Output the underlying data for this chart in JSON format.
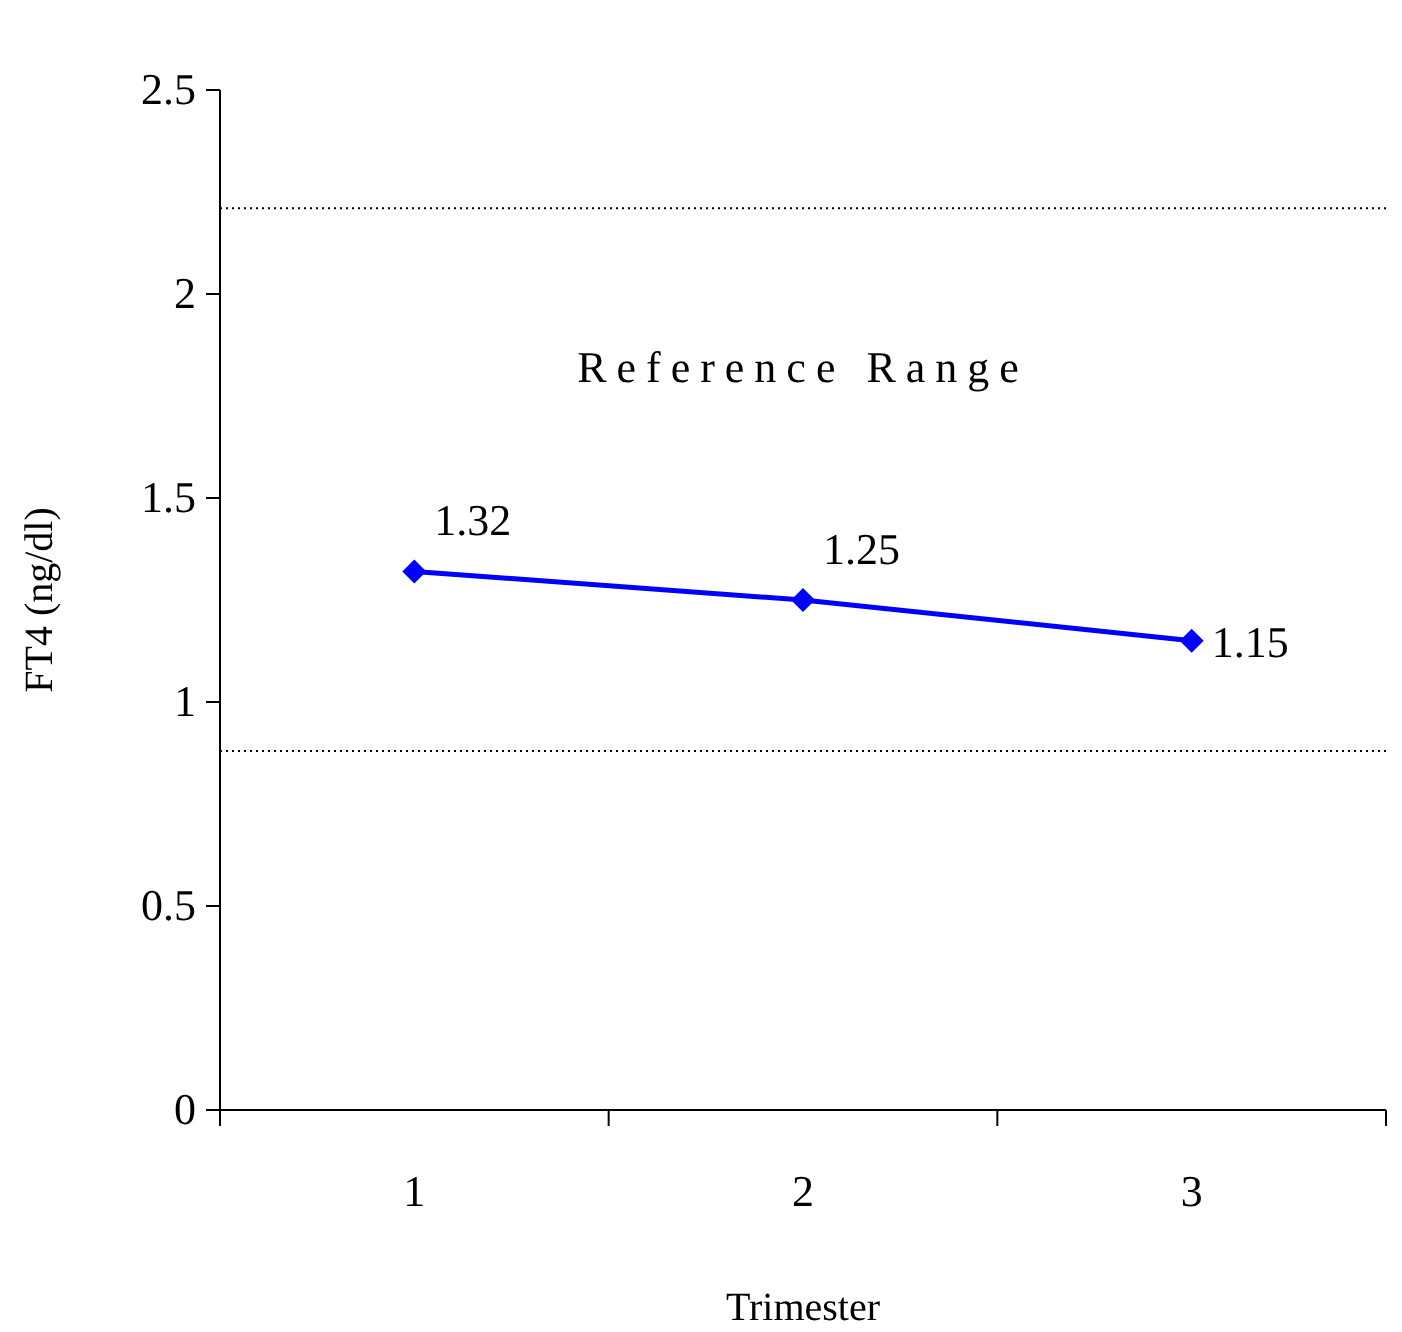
{
  "chart_data": {
    "type": "line",
    "xlabel": "Trimester",
    "ylabel": "FT4 (ng/dl)",
    "categories": [
      "1",
      "2",
      "3"
    ],
    "series": [
      {
        "color": "#0000ff",
        "values": [
          1.32,
          1.25,
          1.15
        ]
      }
    ],
    "ylim": [
      0,
      2.5
    ],
    "yticks": [
      0,
      0.5,
      1,
      1.5,
      2,
      2.5
    ],
    "marker": "diamond",
    "line_style": "solid",
    "data_labels": true,
    "grid": false,
    "ref_lines": [
      {
        "axis": "y",
        "value": 2.21,
        "color": "#000000",
        "line_style": "dotted"
      },
      {
        "axis": "y",
        "value": 0.88,
        "color": "#000000",
        "line_style": "dotted"
      }
    ],
    "annotations": [
      "Reference Range"
    ]
  }
}
